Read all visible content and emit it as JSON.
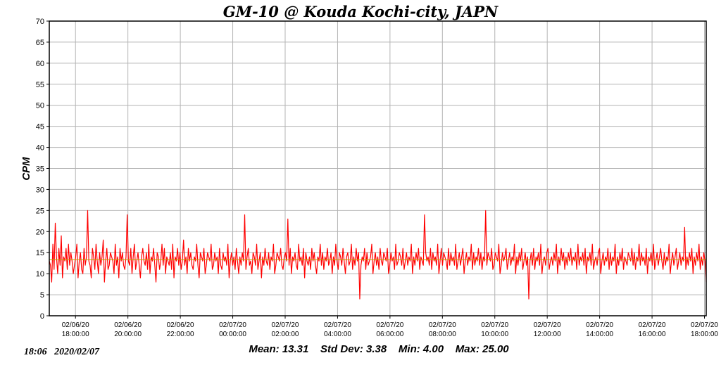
{
  "chart_data": {
    "type": "line",
    "title": "GM-10 @ Kouda Kochi-city, JAPN",
    "ylabel": "CPM",
    "xlabel": "",
    "ylim": [
      0,
      70
    ],
    "ytick_step": 5,
    "yticks": [
      "0",
      "5",
      "10",
      "15",
      "20",
      "25",
      "30",
      "35",
      "40",
      "45",
      "50",
      "55",
      "60",
      "65",
      "70"
    ],
    "xlim": [
      "2020-02-06 17:00",
      "2020-02-07 18:04"
    ],
    "xticks": [
      {
        "date": "02/06/20",
        "time": "18:00:00",
        "t": "2020-02-06 18:00"
      },
      {
        "date": "02/06/20",
        "time": "20:00:00",
        "t": "2020-02-06 20:00"
      },
      {
        "date": "02/06/20",
        "time": "22:00:00",
        "t": "2020-02-06 22:00"
      },
      {
        "date": "02/07/20",
        "time": "00:00:00",
        "t": "2020-02-07 00:00"
      },
      {
        "date": "02/07/20",
        "time": "02:00:00",
        "t": "2020-02-07 02:00"
      },
      {
        "date": "02/07/20",
        "time": "04:00:00",
        "t": "2020-02-07 04:00"
      },
      {
        "date": "02/07/20",
        "time": "06:00:00",
        "t": "2020-02-07 06:00"
      },
      {
        "date": "02/07/20",
        "time": "08:00:00",
        "t": "2020-02-07 08:00"
      },
      {
        "date": "02/07/20",
        "time": "10:00:00",
        "t": "2020-02-07 10:00"
      },
      {
        "date": "02/07/20",
        "time": "12:00:00",
        "t": "2020-02-07 12:00"
      },
      {
        "date": "02/07/20",
        "time": "14:00:00",
        "t": "2020-02-07 14:00"
      },
      {
        "date": "02/07/20",
        "time": "16:00:00",
        "t": "2020-02-07 16:00"
      },
      {
        "date": "02/07/20",
        "time": "18:00:00",
        "t": "2020-02-07 18:00"
      }
    ],
    "grid": true,
    "series": [
      {
        "color": "#ff0000",
        "x_start": "2020-02-06 17:00",
        "x_end": "2020-02-07 18:04",
        "values": [
          13,
          12,
          8,
          17,
          11,
          22,
          14,
          10,
          16,
          12,
          19,
          9,
          14,
          13,
          16,
          11,
          17,
          12,
          15,
          13,
          10,
          12,
          14,
          17,
          9,
          13,
          15,
          11,
          10,
          16,
          12,
          14,
          25,
          13,
          12,
          9,
          16,
          14,
          11,
          17,
          13,
          10,
          15,
          12,
          14,
          18,
          8,
          13,
          16,
          11,
          12,
          15,
          14,
          13,
          10,
          17,
          12,
          14,
          9,
          16,
          13,
          15,
          12,
          11,
          14,
          24,
          13,
          12,
          16,
          10,
          14,
          17,
          11,
          13,
          15,
          12,
          9,
          14,
          16,
          13,
          12,
          15,
          11,
          17,
          10,
          14,
          13,
          16,
          12,
          8,
          15,
          14,
          11,
          13,
          17,
          12,
          16,
          10,
          14,
          13,
          12,
          15,
          11,
          17,
          9,
          14,
          13,
          16,
          12,
          15,
          11,
          13,
          18,
          12,
          14,
          10,
          16,
          13,
          15,
          12,
          11,
          14,
          13,
          17,
          12,
          9,
          15,
          14,
          13,
          16,
          10,
          12,
          15,
          14,
          13,
          17,
          11,
          12,
          15,
          13,
          14,
          10,
          16,
          12,
          11,
          15,
          13,
          14,
          12,
          17,
          9,
          13,
          15,
          12,
          14,
          11,
          16,
          13,
          10,
          14,
          12,
          15,
          13,
          24,
          11,
          14,
          16,
          12,
          13,
          10,
          15,
          14,
          12,
          17,
          11,
          13,
          15,
          9,
          14,
          12,
          16,
          13,
          12,
          15,
          11,
          14,
          13,
          17,
          10,
          12,
          15,
          14,
          13,
          16,
          12,
          11,
          14,
          15,
          13,
          23,
          12,
          16,
          10,
          14,
          13,
          15,
          12,
          11,
          17,
          13,
          14,
          12,
          16,
          9,
          15,
          13,
          12,
          14,
          11,
          16,
          13,
          15,
          12,
          10,
          14,
          13,
          17,
          12,
          15,
          11,
          14,
          13,
          16,
          12,
          13,
          15,
          10,
          14,
          12,
          17,
          13,
          11,
          15,
          14,
          12,
          16,
          13,
          10,
          14,
          15,
          12,
          13,
          17,
          11,
          14,
          12,
          16,
          13,
          15,
          4,
          12,
          14,
          13,
          16,
          11,
          15,
          12,
          13,
          14,
          17,
          10,
          13,
          15,
          12,
          14,
          11,
          16,
          13,
          12,
          15,
          14,
          13,
          16,
          10,
          12,
          15,
          13,
          14,
          11,
          17,
          12,
          13,
          15,
          14,
          12,
          16,
          11,
          13,
          15,
          12,
          14,
          13,
          17,
          10,
          14,
          12,
          15,
          13,
          16,
          11,
          14,
          13,
          12,
          24,
          15,
          13,
          14,
          12,
          16,
          11,
          15,
          13,
          14,
          12,
          17,
          10,
          13,
          16,
          12,
          15,
          14,
          13,
          11,
          16,
          12,
          15,
          13,
          14,
          12,
          17,
          11,
          13,
          15,
          12,
          14,
          16,
          10,
          13,
          15,
          12,
          14,
          13,
          17,
          11,
          15,
          12,
          14,
          13,
          16,
          12,
          15,
          11,
          14,
          13,
          25,
          12,
          15,
          14,
          13,
          16,
          11,
          12,
          15,
          14,
          13,
          17,
          10,
          12,
          15,
          13,
          14,
          16,
          11,
          13,
          15,
          12,
          14,
          13,
          17,
          10,
          14,
          12,
          15,
          13,
          16,
          11,
          13,
          15,
          12,
          14,
          4,
          13,
          15,
          12,
          16,
          11,
          14,
          13,
          15,
          12,
          17,
          10,
          13,
          14,
          12,
          15,
          16,
          11,
          13,
          14,
          12,
          15,
          13,
          17,
          10,
          14,
          12,
          16,
          13,
          15,
          11,
          14,
          12,
          15,
          13,
          16,
          12,
          14,
          13,
          15,
          11,
          17,
          12,
          14,
          13,
          15,
          12,
          16,
          10,
          14,
          13,
          15,
          12,
          17,
          11,
          13,
          14,
          12,
          15,
          16,
          10,
          13,
          15,
          12,
          14,
          13,
          16,
          11,
          15,
          12,
          14,
          13,
          17,
          10,
          14,
          12,
          15,
          13,
          16,
          11,
          14,
          13,
          12,
          15,
          14,
          13,
          16,
          12,
          15,
          11,
          14,
          13,
          17,
          12,
          15,
          13,
          14,
          12,
          16,
          10,
          14,
          13,
          15,
          12,
          17,
          11,
          13,
          15,
          12,
          14,
          16,
          13,
          11,
          15,
          12,
          14,
          13,
          17,
          10,
          13,
          15,
          12,
          14,
          16,
          11,
          13,
          15,
          12,
          14,
          13,
          21,
          11,
          14,
          12,
          15,
          13,
          16,
          10,
          14,
          12,
          15,
          13,
          17,
          11,
          14,
          12,
          15,
          13,
          8
        ]
      }
    ],
    "reference_lines": [
      {
        "label": "mean",
        "value": 13.31,
        "color": "#c8a000"
      }
    ],
    "stats": "Mean: 13.31    Std Dev: 3.38    Min: 4.00    Max: 25.00",
    "timestamp": "18:06   2020/02/07"
  }
}
